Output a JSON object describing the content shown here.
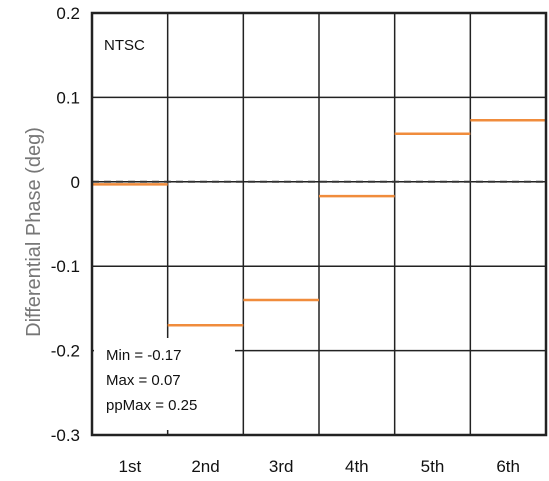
{
  "chart_data": {
    "type": "line",
    "style": "step",
    "categories": [
      "1st",
      "2nd",
      "3rd",
      "4th",
      "5th",
      "6th"
    ],
    "series": [
      {
        "values": [
          -0.003,
          -0.17,
          -0.14,
          -0.017,
          0.057,
          0.073
        ],
        "color": "#f08c3c"
      }
    ],
    "reference_line": {
      "y": 0,
      "style": "dashed",
      "color": "#333333"
    },
    "ylim": [
      -0.3,
      0.2
    ],
    "yticks": [
      "0.2",
      "0.1",
      "0",
      "-0.1",
      "-0.2",
      "-0.3"
    ],
    "ytick_values": [
      0.2,
      0.1,
      0,
      -0.1,
      -0.2,
      -0.3
    ],
    "ylabel": "Differential Phase (deg)",
    "xlabel": "",
    "title": "",
    "grid": true,
    "label_text": "NTSC",
    "stats": [
      "Min = -0.17",
      "Max = 0.07",
      "ppMax = 0.25"
    ]
  }
}
